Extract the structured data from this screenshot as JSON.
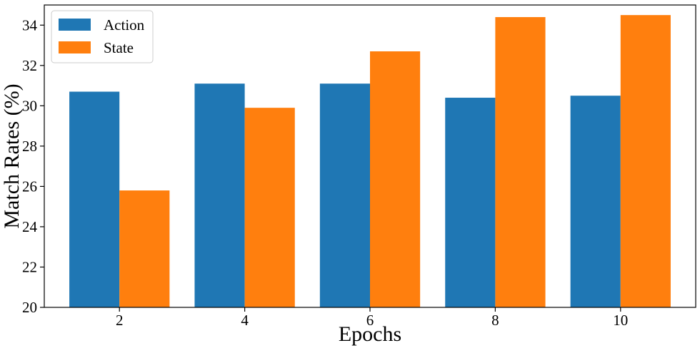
{
  "chart_data": {
    "type": "bar",
    "title": "",
    "xlabel": "Epochs",
    "ylabel": "Match Rates (%)",
    "categories": [
      "2",
      "4",
      "6",
      "8",
      "10"
    ],
    "series": [
      {
        "name": "Action",
        "color": "#1f77b4",
        "values": [
          30.7,
          31.1,
          31.1,
          30.4,
          30.5
        ]
      },
      {
        "name": "State",
        "color": "#ff7f0e",
        "values": [
          25.8,
          29.9,
          32.7,
          34.4,
          34.5
        ]
      }
    ],
    "ylim": [
      20,
      35
    ],
    "yticks": [
      "20",
      "22",
      "24",
      "26",
      "28",
      "30",
      "32",
      "34"
    ],
    "grid": false,
    "legend_position": "top-left"
  }
}
